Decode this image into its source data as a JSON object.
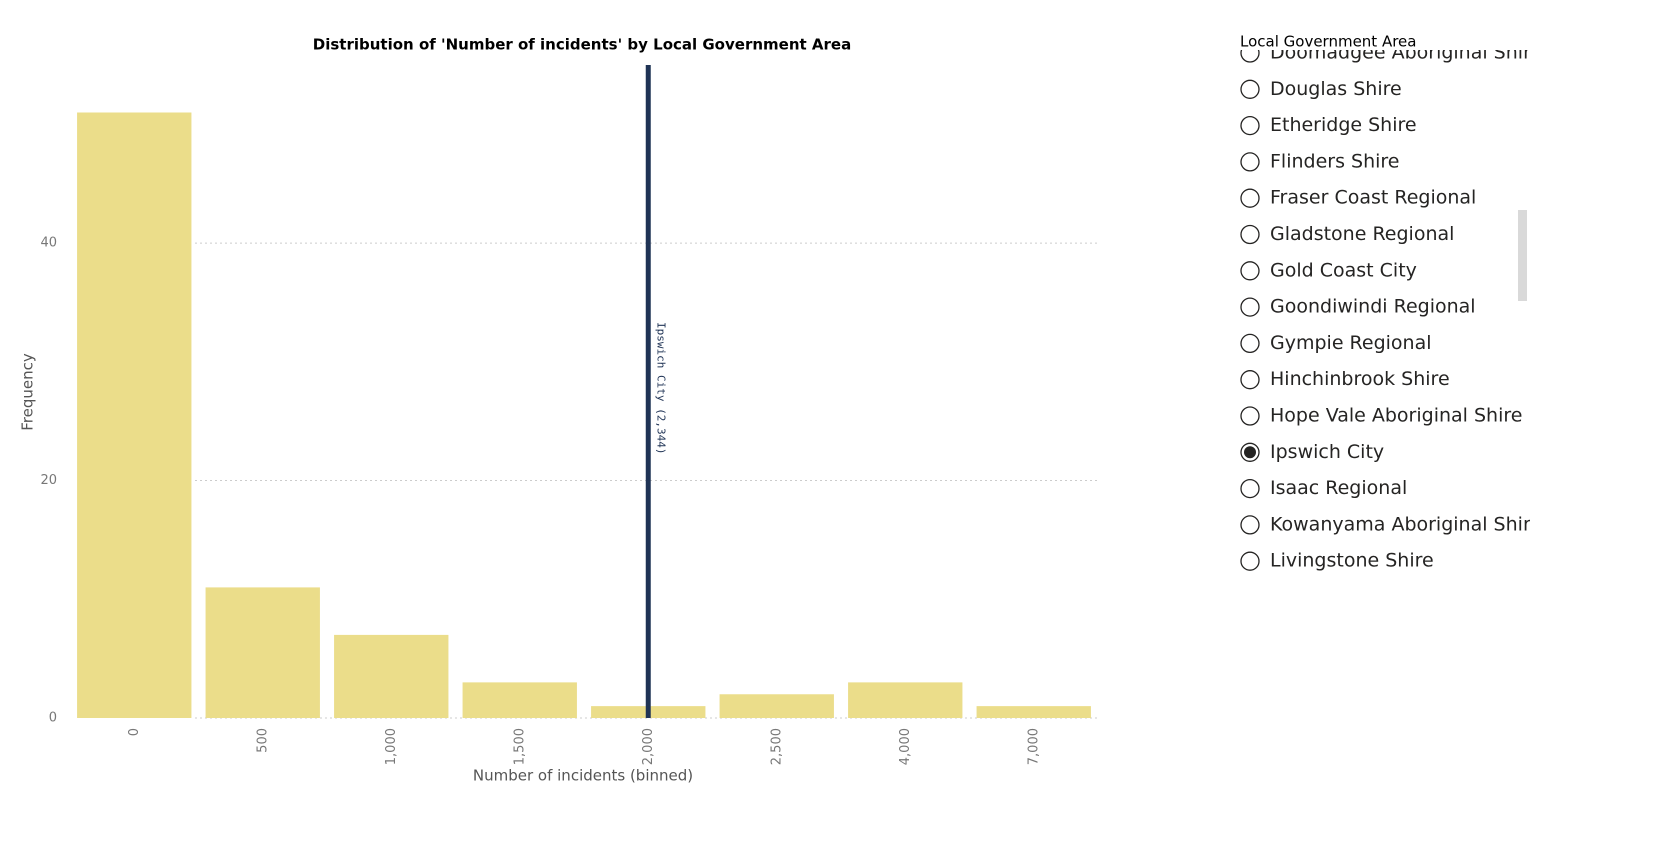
{
  "chart_data": {
    "type": "bar",
    "title": "Distribution of 'Number of incidents' by Local Government Area",
    "x_label": "Number of incidents (binned)",
    "y_label": "Frequency",
    "categories": [
      "0",
      "500",
      "1,000",
      "1,500",
      "2,000",
      "2,500",
      "4,000",
      "7,000"
    ],
    "values": [
      51,
      11,
      7,
      3,
      1,
      2,
      3,
      1
    ],
    "color": "#ebdd8a",
    "ylim": [
      0,
      55
    ],
    "yticks": [
      0,
      20,
      40
    ],
    "grid": true,
    "reference_line": {
      "label": "Ipswich City (2,344)",
      "value": 2344,
      "color": "#1f3355"
    }
  },
  "slicer": {
    "title": "Local Government Area",
    "items": [
      {
        "label": "Doomadgee Aboriginal Shire",
        "selected": false
      },
      {
        "label": "Douglas Shire",
        "selected": false
      },
      {
        "label": "Etheridge Shire",
        "selected": false
      },
      {
        "label": "Flinders Shire",
        "selected": false
      },
      {
        "label": "Fraser Coast Regional",
        "selected": false
      },
      {
        "label": "Gladstone Regional",
        "selected": false
      },
      {
        "label": "Gold Coast City",
        "selected": false
      },
      {
        "label": "Goondiwindi Regional",
        "selected": false
      },
      {
        "label": "Gympie Regional",
        "selected": false
      },
      {
        "label": "Hinchinbrook Shire",
        "selected": false
      },
      {
        "label": "Hope Vale Aboriginal Shire",
        "selected": false
      },
      {
        "label": "Ipswich City",
        "selected": true
      },
      {
        "label": "Isaac Regional",
        "selected": false
      },
      {
        "label": "Kowanyama Aboriginal Shire",
        "selected": false
      },
      {
        "label": "Livingstone Shire",
        "selected": false
      }
    ]
  }
}
